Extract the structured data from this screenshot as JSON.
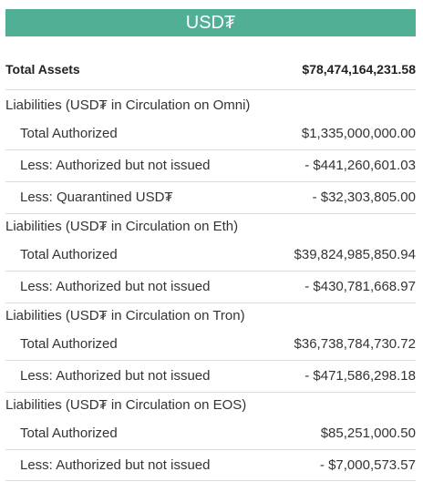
{
  "header": {
    "title": "USD₮"
  },
  "total_assets": {
    "label": "Total Assets",
    "value": "$78,474,164,231.58"
  },
  "sections": [
    {
      "title": "Liabilities (USD₮ in Circulation on Omni)",
      "items": [
        {
          "label": "Total Authorized",
          "value": "$1,335,000,000.00"
        },
        {
          "label": "Less: Authorized but not issued",
          "value": "- $441,260,601.03"
        },
        {
          "label": "Less: Quarantined USD₮",
          "value": "- $32,303,805.00"
        }
      ]
    },
    {
      "title": "Liabilities (USD₮ in Circulation on Eth)",
      "items": [
        {
          "label": "Total Authorized",
          "value": "$39,824,985,850.94"
        },
        {
          "label": "Less: Authorized but not issued",
          "value": "- $430,781,668.97"
        }
      ]
    },
    {
      "title": "Liabilities (USD₮ in Circulation on Tron)",
      "items": [
        {
          "label": "Total Authorized",
          "value": "$36,738,784,730.72"
        },
        {
          "label": "Less: Authorized but not issued",
          "value": "- $471,586,298.18"
        }
      ]
    },
    {
      "title": "Liabilities (USD₮ in Circulation on EOS)",
      "items": [
        {
          "label": "Total Authorized",
          "value": "$85,251,000.50"
        },
        {
          "label": "Less: Authorized but not issued",
          "value": "- $7,000,573.57"
        }
      ]
    }
  ],
  "colors": {
    "header_bg": "#50af95",
    "header_text": "#ffffff",
    "text": "#333333",
    "divider": "#dddddd"
  }
}
